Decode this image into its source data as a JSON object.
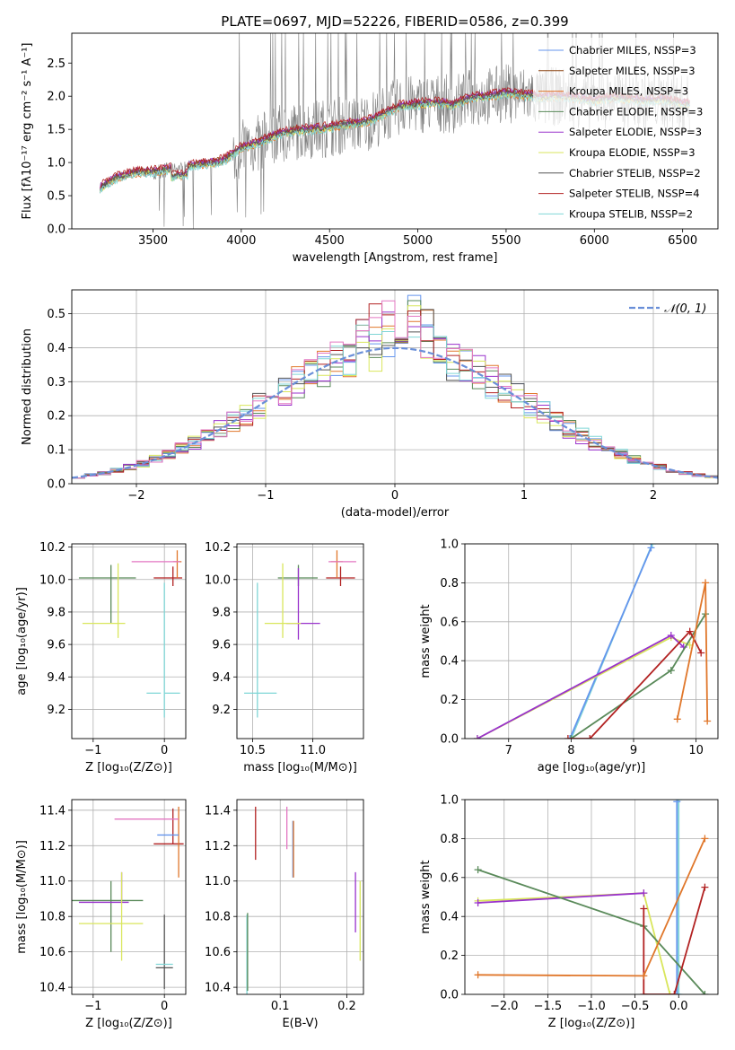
{
  "chart_data": [
    {
      "id": "spectrum",
      "type": "line",
      "title": "PLATE=0697, MJD=52226, FIBERID=0586, z=0.399",
      "xlabel": "wavelength [Angstrom, rest frame]",
      "ylabel": "Flux [fλ10⁻¹⁷ erg cm⁻² s⁻¹ A⁻¹]",
      "xlim": [
        3040,
        6700
      ],
      "ylim": [
        0,
        2.95
      ],
      "xticks": [
        3500,
        4000,
        4500,
        5000,
        5500,
        6000,
        6500
      ],
      "yticks": [
        0.0,
        0.5,
        1.0,
        1.5,
        2.0,
        2.5
      ],
      "legend_position": "right",
      "observed_color": "#808080",
      "series": [
        {
          "name": "Chabrier MILES, N_SSP=3",
          "color": "#6495ed",
          "offset": 0.0
        },
        {
          "name": "Salpeter MILES, N_SSP=3",
          "color": "#8b4513",
          "offset": 0.02
        },
        {
          "name": "Kroupa MILES, N_SSP=3",
          "color": "#e0772b",
          "offset": -0.03
        },
        {
          "name": "Chabrier ELODIE, N_SSP=3",
          "color": "#5a8a5a",
          "offset": 0.01
        },
        {
          "name": "Salpeter ELODIE, N_SSP=3",
          "color": "#9932cc",
          "offset": 0.03
        },
        {
          "name": "Kroupa ELODIE, N_SSP=3",
          "color": "#d9e65c",
          "offset": -0.02
        },
        {
          "name": "Chabrier STELIB, N_SSP=2",
          "color": "#555555",
          "offset": 0.0
        },
        {
          "name": "Salpeter STELIB, N_SSP=4",
          "color": "#b22222",
          "offset": 0.05
        },
        {
          "name": "Kroupa STELIB, N_SSP=2",
          "color": "#7fd6d6",
          "offset": -0.04
        }
      ],
      "continuum": {
        "x": [
          3200,
          3300,
          3400,
          3500,
          3600,
          3700,
          3800,
          3900,
          4000,
          4100,
          4200,
          4300,
          4400,
          4500,
          4600,
          4700,
          4800,
          4900,
          5000,
          5100,
          5200,
          5300,
          5400,
          5500,
          5600,
          5700,
          5800,
          5900,
          6000,
          6100,
          6200,
          6300,
          6400,
          6500
        ],
        "y": [
          0.62,
          0.78,
          0.85,
          0.86,
          0.9,
          0.95,
          0.98,
          1.03,
          1.22,
          1.3,
          1.42,
          1.48,
          1.5,
          1.53,
          1.58,
          1.6,
          1.72,
          1.85,
          1.88,
          1.9,
          1.87,
          1.98,
          2.0,
          2.05,
          2.02,
          1.98,
          2.0,
          1.97,
          1.92,
          1.98,
          1.95,
          1.93,
          1.95,
          1.88
        ]
      }
    },
    {
      "id": "residual-histogram",
      "type": "bar",
      "xlabel": "(data-model)/error",
      "ylabel": "Normed distribution",
      "xlim": [
        -2.5,
        2.5
      ],
      "ylim": [
        0,
        0.57
      ],
      "xticks": [
        -2,
        -1,
        0,
        1,
        2
      ],
      "yticks": [
        0.0,
        0.1,
        0.2,
        0.3,
        0.4,
        0.5
      ],
      "grid": true,
      "legend_position": "top-right",
      "bin_width": 0.1,
      "normal_curve_label": "𝒩(0, 1)",
      "normal_curve_color": "#6a8fd8",
      "series_colors": [
        "#6495ed",
        "#e0772b",
        "#5a8a5a",
        "#9932cc",
        "#d9e65c",
        "#555555",
        "#b22222",
        "#7fd6d6",
        "#e377c2"
      ]
    },
    {
      "id": "age-vs-Z",
      "type": "scatter",
      "xlabel": "Z [log₁₀(Z/Z⊙)]",
      "ylabel": "age  [log₁₀(age/yr)]",
      "xlim": [
        -1.3,
        0.3
      ],
      "ylim": [
        9.02,
        10.22
      ],
      "xticks": [
        -1,
        0
      ],
      "yticks": [
        9.2,
        9.4,
        9.6,
        9.8,
        10.0,
        10.2
      ],
      "grid": true,
      "points": [
        {
          "x": 0.12,
          "y": 10.01,
          "xerr": [
            0.27,
            0.13
          ],
          "yerr": [
            0.05,
            0.07
          ],
          "color": "#b22222"
        },
        {
          "x": 0.18,
          "y": 10.11,
          "xerr": [
            0.06,
            0.06
          ],
          "yerr": [
            0.1,
            0.07
          ],
          "color": "#e0772b"
        },
        {
          "x": -0.2,
          "y": 10.11,
          "xerr": [
            0.26,
            0.42
          ],
          "yerr": [
            0.0,
            0.0
          ],
          "color": "#e377c2"
        },
        {
          "x": -0.75,
          "y": 10.01,
          "xerr": [
            0.45,
            0.35
          ],
          "yerr": [
            0.0,
            0.0
          ],
          "color": "#5a8a5a"
        },
        {
          "x": -0.75,
          "y": 9.73,
          "xerr": [
            0.0,
            0.0
          ],
          "yerr": [
            0.0,
            0.36
          ],
          "color": "#5a8a5a"
        },
        {
          "x": -0.65,
          "y": 9.73,
          "xerr": [
            0.5,
            0.1
          ],
          "yerr": [
            0.09,
            0.37
          ],
          "color": "#d9e65c"
        },
        {
          "x": 0.0,
          "y": 9.3,
          "xerr": [
            0.0,
            0.22
          ],
          "yerr": [
            0.15,
            0.68
          ],
          "color": "#7fd6d6"
        },
        {
          "x": -0.05,
          "y": 9.3,
          "xerr": [
            0.2,
            0.0
          ],
          "yerr": [
            0.0,
            0.0
          ],
          "color": "#7fd6d6"
        }
      ]
    },
    {
      "id": "age-vs-mass",
      "type": "scatter",
      "xlabel": "mass [log₁₀(M/M⊙)]",
      "xlim": [
        10.37,
        11.42
      ],
      "ylim": [
        9.02,
        10.22
      ],
      "xticks": [
        10.5,
        11.0
      ],
      "xticklabels": [
        "10.5",
        "11.0"
      ],
      "yticks": [
        9.2,
        9.4,
        9.6,
        9.8,
        10.0,
        10.2
      ],
      "grid": true,
      "points": [
        {
          "x": 11.23,
          "y": 10.01,
          "xerr": [
            0.12,
            0.12
          ],
          "yerr": [
            0.05,
            0.07
          ],
          "color": "#b22222"
        },
        {
          "x": 11.2,
          "y": 10.11,
          "xerr": [
            0.05,
            0.05
          ],
          "yerr": [
            0.1,
            0.07
          ],
          "color": "#e0772b"
        },
        {
          "x": 11.25,
          "y": 10.11,
          "xerr": [
            0.12,
            0.11
          ],
          "yerr": [
            0.0,
            0.0
          ],
          "color": "#e377c2"
        },
        {
          "x": 10.88,
          "y": 10.01,
          "xerr": [
            0.17,
            0.16
          ],
          "yerr": [
            0.05,
            0.08
          ],
          "color": "#5a8a5a"
        },
        {
          "x": 10.88,
          "y": 9.73,
          "xerr": [
            0.0,
            0.0
          ],
          "yerr": [
            0.1,
            0.34
          ],
          "color": "#9932cc"
        },
        {
          "x": 10.88,
          "y": 9.73,
          "xerr": [
            0.1,
            0.18
          ],
          "yerr": [
            0.0,
            0.0
          ],
          "color": "#9932cc"
        },
        {
          "x": 10.75,
          "y": 9.73,
          "xerr": [
            0.15,
            0.15
          ],
          "yerr": [
            0.09,
            0.37
          ],
          "color": "#d9e65c"
        },
        {
          "x": 10.54,
          "y": 9.3,
          "xerr": [
            0.11,
            0.16
          ],
          "yerr": [
            0.15,
            0.68
          ],
          "color": "#7fd6d6"
        }
      ]
    },
    {
      "id": "weight-vs-age",
      "type": "line",
      "xlabel": "age  [log₁₀(age/yr)]",
      "ylabel": "mass weight",
      "xlim": [
        6.3,
        10.35
      ],
      "ylim": [
        0,
        1.0
      ],
      "xticks": [
        7,
        8,
        9,
        10
      ],
      "yticks": [
        0.0,
        0.2,
        0.4,
        0.6,
        0.8,
        1.0
      ],
      "grid": true,
      "series": [
        {
          "color": "#7fd6d6",
          "x": [
            8.0,
            9.3
          ],
          "y": [
            0.0,
            1.0
          ]
        },
        {
          "color": "#6495ed",
          "x": [
            7.98,
            9.28
          ],
          "y": [
            0.0,
            0.98
          ]
        },
        {
          "color": "#d9e65c",
          "x": [
            6.5,
            9.6,
            9.9
          ],
          "y": [
            0.0,
            0.52,
            0.48
          ]
        },
        {
          "color": "#9932cc",
          "x": [
            6.5,
            9.6,
            9.8
          ],
          "y": [
            0.0,
            0.53,
            0.47
          ]
        },
        {
          "color": "#5a8a5a",
          "x": [
            8.0,
            9.6,
            10.15
          ],
          "y": [
            0.0,
            0.35,
            0.64
          ]
        },
        {
          "color": "#b22222",
          "x": [
            7.95,
            8.3,
            9.9,
            10.08
          ],
          "y": [
            0.0,
            0.0,
            0.55,
            0.44
          ]
        },
        {
          "color": "#e0772b",
          "x": [
            9.7,
            10.15,
            10.18
          ],
          "y": [
            0.1,
            0.8,
            0.09
          ]
        }
      ]
    },
    {
      "id": "mass-vs-Z",
      "type": "scatter",
      "xlabel": "Z [log₁₀(Z/Z⊙)]",
      "ylabel": "mass [log₁₀(M/M⊙)]",
      "xlim": [
        -1.3,
        0.3
      ],
      "ylim": [
        10.36,
        11.46
      ],
      "xticks": [
        -1,
        0
      ],
      "yticks": [
        10.4,
        10.6,
        10.8,
        11.0,
        11.2,
        11.4
      ],
      "grid": true,
      "points": [
        {
          "x": 0.12,
          "y": 11.21,
          "xerr": [
            0.27,
            0.15
          ],
          "yerr": [
            0.0,
            0.0
          ],
          "color": "#b22222"
        },
        {
          "x": 0.12,
          "y": 11.21,
          "xerr": [
            0.0,
            0.0
          ],
          "yerr": [
            0.0,
            0.2
          ],
          "color": "#b22222"
        },
        {
          "x": 0.2,
          "y": 11.2,
          "xerr": [
            0.0,
            0.0
          ],
          "yerr": [
            0.18,
            0.22
          ],
          "color": "#e0772b"
        },
        {
          "x": 0.1,
          "y": 11.26,
          "xerr": [
            0.2,
            0.1
          ],
          "yerr": [
            0.0,
            0.0
          ],
          "color": "#6495ed"
        },
        {
          "x": -0.25,
          "y": 11.35,
          "xerr": [
            0.45,
            0.45
          ],
          "yerr": [
            0.0,
            0.0
          ],
          "color": "#e377c2"
        },
        {
          "x": -0.8,
          "y": 10.89,
          "xerr": [
            0.5,
            0.5
          ],
          "yerr": [
            0.0,
            0.0
          ],
          "color": "#5a8a5a"
        },
        {
          "x": -0.75,
          "y": 10.89,
          "xerr": [
            0.0,
            0.0
          ],
          "yerr": [
            0.29,
            0.11
          ],
          "color": "#5a8a5a"
        },
        {
          "x": -0.6,
          "y": 10.88,
          "xerr": [
            0.6,
            0.1
          ],
          "yerr": [
            0.0,
            0.17
          ],
          "color": "#9932cc"
        },
        {
          "x": -0.6,
          "y": 10.76,
          "xerr": [
            0.6,
            0.3
          ],
          "yerr": [
            0.21,
            0.29
          ],
          "color": "#d9e65c"
        },
        {
          "x": 0.0,
          "y": 10.51,
          "xerr": [
            0.12,
            0.12
          ],
          "yerr": [
            0.12,
            0.3
          ],
          "color": "#555555"
        },
        {
          "x": 0.0,
          "y": 10.53,
          "xerr": [
            0.12,
            0.12
          ],
          "yerr": [
            0.0,
            0.0
          ],
          "color": "#7fd6d6"
        }
      ]
    },
    {
      "id": "mass-vs-EBV",
      "type": "scatter",
      "xlabel": "E(B-V)",
      "xlim": [
        0.035,
        0.225
      ],
      "ylim": [
        10.36,
        11.46
      ],
      "xticks": [
        0.1,
        0.2
      ],
      "xticklabels": [
        "0.1",
        "0.2"
      ],
      "yticks": [
        10.4,
        10.6,
        10.8,
        11.0,
        11.2,
        11.4
      ],
      "grid": true,
      "points": [
        {
          "x": 0.063,
          "y": 11.27,
          "yerr": [
            0.15,
            0.15
          ],
          "color": "#b22222"
        },
        {
          "x": 0.11,
          "y": 11.3,
          "yerr": [
            0.12,
            0.12
          ],
          "color": "#e377c2"
        },
        {
          "x": 0.119,
          "y": 11.18,
          "yerr": [
            0.16,
            0.16
          ],
          "color": "#6495ed"
        },
        {
          "x": 0.12,
          "y": 11.2,
          "yerr": [
            0.18,
            0.14
          ],
          "color": "#e0772b"
        },
        {
          "x": 0.213,
          "y": 10.88,
          "yerr": [
            0.17,
            0.17
          ],
          "color": "#9932cc"
        },
        {
          "x": 0.22,
          "y": 10.76,
          "yerr": [
            0.21,
            0.24
          ],
          "color": "#d9e65c"
        },
        {
          "x": 0.05,
          "y": 10.55,
          "yerr": [
            0.19,
            0.26
          ],
          "color": "#7fd6d6"
        },
        {
          "x": 0.051,
          "y": 10.6,
          "yerr": [
            0.22,
            0.22
          ],
          "color": "#5a8a5a"
        }
      ]
    },
    {
      "id": "weight-vs-Z",
      "type": "line",
      "xlabel": "Z [log₁₀(Z/Z⊙)]",
      "ylabel": "mass weight",
      "xlim": [
        -2.45,
        0.45
      ],
      "ylim": [
        0,
        1.0
      ],
      "xticks": [
        -2.0,
        -1.5,
        -1.0,
        -0.5,
        0.0
      ],
      "yticks": [
        0.0,
        0.2,
        0.4,
        0.6,
        0.8,
        1.0
      ],
      "grid": true,
      "series": [
        {
          "color": "#7fd6d6",
          "x": [
            0.0,
            0.0
          ],
          "y": [
            0.0,
            1.0
          ]
        },
        {
          "color": "#6495ed",
          "x": [
            -0.02,
            -0.02
          ],
          "y": [
            0.0,
            0.99
          ]
        },
        {
          "color": "#d9e65c",
          "x": [
            -2.3,
            -0.4,
            -0.1
          ],
          "y": [
            0.48,
            0.52,
            0.0
          ]
        },
        {
          "color": "#9932cc",
          "x": [
            -2.3,
            -0.4
          ],
          "y": [
            0.47,
            0.52
          ]
        },
        {
          "color": "#5a8a5a",
          "x": [
            -2.3,
            -0.4,
            0.3
          ],
          "y": [
            0.64,
            0.35,
            0.0
          ]
        },
        {
          "color": "#b22222",
          "x": [
            -0.4,
            -0.4,
            -0.05,
            0.3
          ],
          "y": [
            0.44,
            0.0,
            0.0,
            0.55
          ]
        },
        {
          "color": "#e0772b",
          "x": [
            -2.3,
            -0.4,
            0.3
          ],
          "y": [
            0.1,
            0.095,
            0.8
          ]
        }
      ]
    }
  ]
}
